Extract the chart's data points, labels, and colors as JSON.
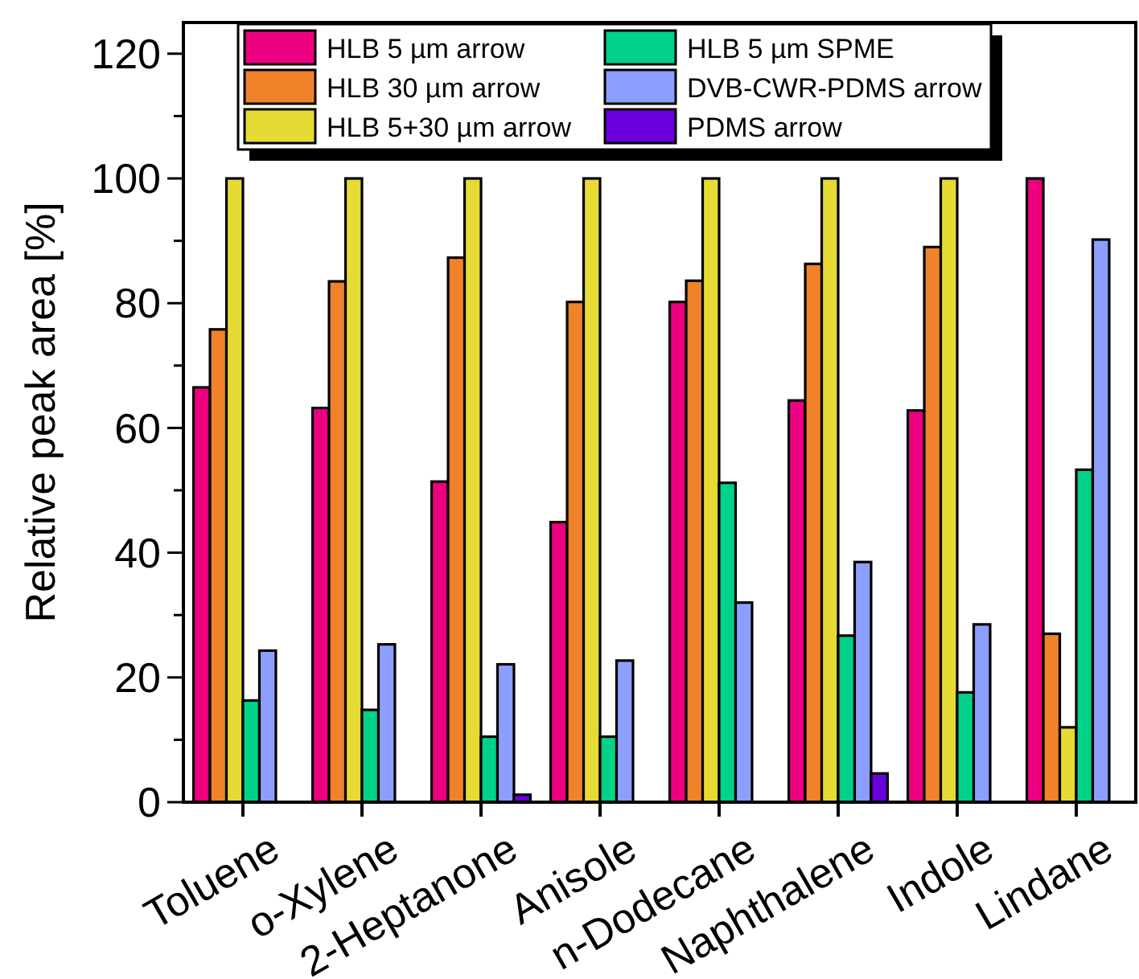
{
  "chart_data": {
    "type": "bar",
    "ylabel": "Relative peak area [%]",
    "categories": [
      "Toluene",
      "o-Xylene",
      "2-Heptanone",
      "Anisole",
      "n-Dodecane",
      "Naphthalene",
      "Indole",
      "Lindane"
    ],
    "series": [
      {
        "name": "HLB 5 µm arrow",
        "color": "#ec007f",
        "values": [
          66.5,
          63.2,
          51.4,
          44.9,
          80.2,
          64.4,
          62.8,
          100
        ]
      },
      {
        "name": "HLB 30 µm arrow",
        "color": "#f0822a",
        "values": [
          75.8,
          83.5,
          87.3,
          80.2,
          83.6,
          86.3,
          89.0,
          27.0
        ]
      },
      {
        "name": "HLB 5+30 µm arrow",
        "color": "#e6da35",
        "values": [
          100,
          100,
          100,
          100,
          100,
          100,
          100,
          12.0
        ]
      },
      {
        "name": "HLB 5 µm SPME",
        "color": "#00d28a",
        "values": [
          16.3,
          14.8,
          10.5,
          10.5,
          51.2,
          26.7,
          17.6,
          53.3
        ]
      },
      {
        "name": "DVB-CWR-PDMS arrow",
        "color": "#8c9fff",
        "values": [
          24.3,
          25.3,
          22.1,
          22.7,
          32.0,
          38.5,
          28.5,
          90.2
        ]
      },
      {
        "name": "PDMS arrow",
        "color": "#6a00dc",
        "values": [
          0,
          0,
          1.2,
          null,
          null,
          4.6,
          null,
          0
        ]
      }
    ],
    "ylim": [
      0,
      125
    ],
    "yticks": [
      0,
      {
        "value": 10,
        "label": null
      },
      20,
      {
        "value": 30,
        "label": null
      },
      40,
      {
        "value": 50,
        "label": null
      },
      60,
      {
        "value": 70,
        "label": null
      },
      80,
      {
        "value": 90,
        "label": null
      },
      100,
      {
        "value": 110,
        "label": null
      },
      120
    ],
    "legend": "top",
    "grid": false
  }
}
